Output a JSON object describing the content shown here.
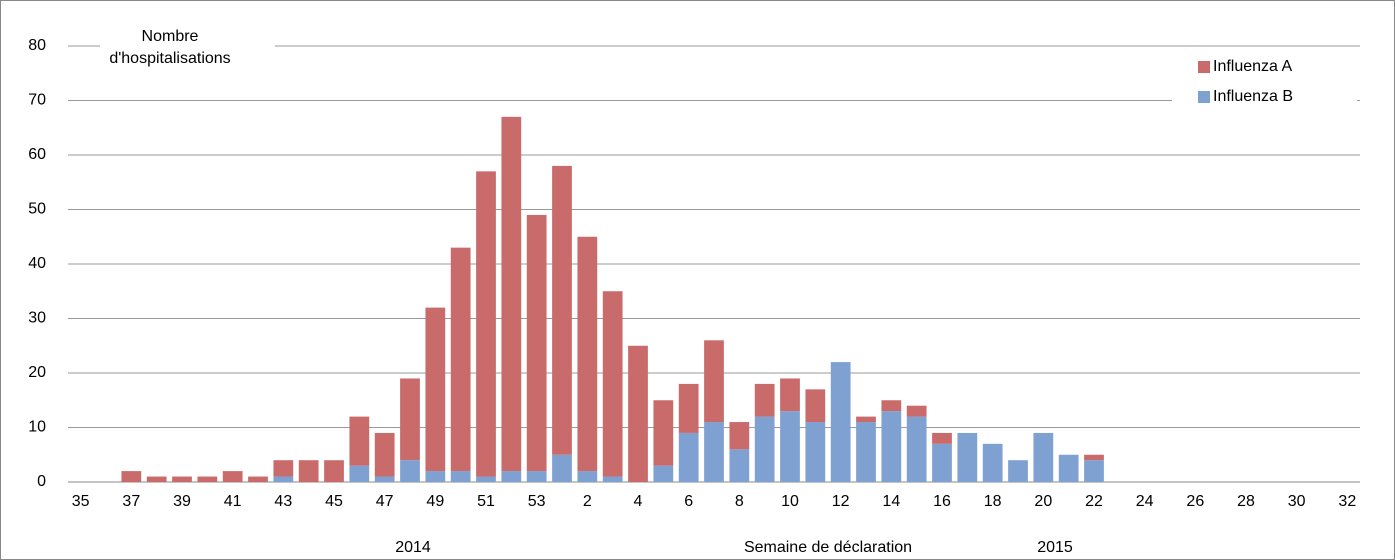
{
  "chart_data": {
    "type": "bar",
    "stacked": true,
    "y_label": [
      "Nombre",
      "d'hospitalisations"
    ],
    "x_label": "Semaine de déclaration",
    "annotations": [
      "2014",
      "2015"
    ],
    "categories": [
      "35",
      null,
      "37",
      null,
      "39",
      null,
      "41",
      null,
      "43",
      null,
      "45",
      null,
      "47",
      null,
      "49",
      null,
      "51",
      null,
      "53",
      null,
      "2",
      null,
      "4",
      null,
      "6",
      null,
      "8",
      null,
      "10",
      null,
      "12",
      null,
      "14",
      null,
      "16",
      null,
      "18",
      null,
      "20",
      null,
      "22",
      null,
      "24",
      null,
      "26",
      null,
      "28",
      null,
      "30",
      null,
      "32"
    ],
    "series": [
      {
        "name": "Influenza B",
        "color": "#7ea1d1",
        "values": [
          0,
          0,
          0,
          0,
          0,
          0,
          0,
          0,
          1,
          0,
          0,
          3,
          1,
          4,
          2,
          2,
          1,
          2,
          2,
          5,
          2,
          1,
          0,
          3,
          9,
          11,
          6,
          12,
          13,
          11,
          22,
          11,
          13,
          12,
          7,
          9,
          7,
          4,
          9,
          5,
          4,
          0,
          0,
          0,
          0,
          0,
          0,
          0,
          0,
          0,
          0
        ]
      },
      {
        "name": "Influenza A",
        "color": "#c96b6b",
        "values": [
          0,
          0,
          2,
          1,
          1,
          1,
          2,
          1,
          3,
          4,
          4,
          9,
          8,
          15,
          30,
          41,
          56,
          65,
          47,
          53,
          43,
          34,
          25,
          12,
          9,
          15,
          5,
          6,
          6,
          6,
          0,
          1,
          2,
          2,
          2,
          0,
          0,
          0,
          0,
          0,
          1,
          0,
          0,
          0,
          0,
          0,
          0,
          0,
          0,
          0,
          0
        ]
      }
    ],
    "legend_order": [
      1,
      0
    ],
    "legend": "top-right",
    "ylim": [
      0,
      80
    ],
    "yticks": [
      0,
      10,
      20,
      30,
      40,
      50,
      60,
      70,
      80
    ],
    "grid": true
  }
}
